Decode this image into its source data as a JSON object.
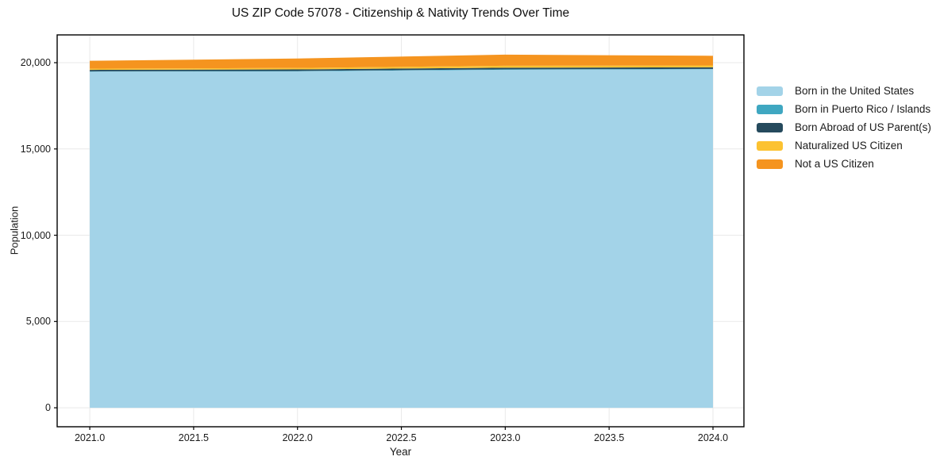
{
  "figure": {
    "background": "#ffffff"
  },
  "chart_data": {
    "type": "area",
    "stacked": true,
    "title": "US ZIP Code 57078 - Citizenship & Nativity Trends Over Time",
    "xlabel": "Year",
    "ylabel": "Population",
    "x": [
      2021,
      2022,
      2023,
      2024
    ],
    "series": [
      {
        "name": "Born in the United States",
        "color": "#a3d3e8",
        "values": [
          19480,
          19500,
          19590,
          19620
        ]
      },
      {
        "name": "Born in Puerto Rico / Islands",
        "color": "#3fa7c1",
        "values": [
          18,
          20,
          25,
          20
        ]
      },
      {
        "name": "Born Abroad of US Parent(s)",
        "color": "#254a5d",
        "values": [
          85,
          90,
          92,
          90
        ]
      },
      {
        "name": "Naturalized US Citizen",
        "color": "#fcc231",
        "values": [
          70,
          85,
          115,
          110
        ]
      },
      {
        "name": "Not a US Citizen",
        "color": "#f5941f",
        "values": [
          455,
          545,
          645,
          560
        ]
      }
    ],
    "totals_by_year": [
      20108,
      20240,
      20467,
      20400
    ],
    "xticks": {
      "values": [
        2021.0,
        2021.5,
        2022.0,
        2022.5,
        2023.0,
        2023.5,
        2024.0
      ],
      "labels": [
        "2021.0",
        "2021.5",
        "2022.0",
        "2022.5",
        "2023.0",
        "2023.5",
        "2024.0"
      ]
    },
    "yticks": {
      "values": [
        0,
        5000,
        10000,
        15000,
        20000
      ],
      "labels": [
        "0",
        "5,000",
        "10,000",
        "15,000",
        "20,000"
      ]
    },
    "xlim": [
      2020.843,
      2024.149
    ],
    "ylim": [
      -1100,
      21610
    ],
    "grid": true,
    "grid_color": "#e9e9e9",
    "spine_color": "#000000",
    "legend_position": "right"
  }
}
